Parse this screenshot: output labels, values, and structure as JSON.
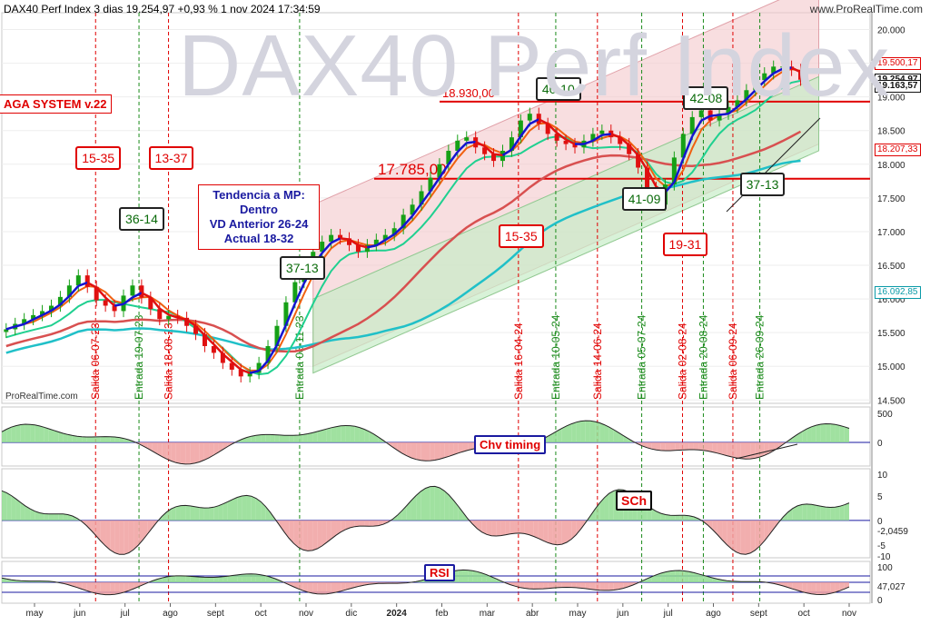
{
  "header": {
    "instrument": "DAX40 Perf Index 3 dias 19.254,97 +0,93 % 1 nov 2024 17:34:59",
    "brand": "www.ProRealTime.com",
    "watermark": "DAX40 Perf Index",
    "source": "ProRealTime.com"
  },
  "system_label": "AGA SYSTEM v.22",
  "trend_box": {
    "line1": "Tendencia a MP: Dentro",
    "line2": "VD Anterior 26-24",
    "line3": "Actual 18-32"
  },
  "indicator_labels": {
    "chv": "Chv timing",
    "sch": "SCh",
    "rsi": "RSI"
  },
  "colors": {
    "price_up": "#16a016",
    "price_down": "#e01010",
    "ma_fast_blue": "#1414d0",
    "ma_fast_red": "#e01010",
    "ma_mid_orange": "#f06010",
    "ma_green": "#20d090",
    "ma_slow": "#d85050",
    "ma_longest": "#20c0c8",
    "channel_red": "#f4c8cc",
    "channel_green": "#c8ecc8",
    "entry": "#1a8a1a",
    "exit": "#e00000"
  },
  "chart_data": {
    "type": "candlestick",
    "title": "DAX40 Perf Index 3 dias",
    "y_axis": {
      "ticks": [
        "20.000",
        "19.500",
        "19.000",
        "18.500",
        "18.000",
        "17.500",
        "17.000",
        "16.500",
        "16.000",
        "15.500",
        "15.000",
        "14.500"
      ],
      "ylim": [
        14450,
        20250
      ]
    },
    "x_axis": {
      "ticks": [
        "may",
        "jun",
        "jul",
        "ago",
        "sept",
        "oct",
        "nov",
        "dic",
        "2024",
        "feb",
        "mar",
        "abr",
        "may",
        "jun",
        "jul",
        "ago",
        "sept",
        "oct",
        "nov"
      ]
    },
    "price_labels": [
      {
        "text": "19.500,17",
        "value": 19500,
        "style": "red"
      },
      {
        "text": "19.254,97",
        "value": 19255,
        "style": "dark"
      },
      {
        "text": "19.163,57",
        "value": 19164,
        "style": "dark"
      },
      {
        "text": "18.207,33",
        "value": 18207,
        "style": "red"
      },
      {
        "text": "16.092,85",
        "value": 16093,
        "style": "cyan"
      }
    ],
    "horizontal_lines": [
      {
        "text": "18.930,00",
        "value": 18930
      },
      {
        "text": "17.785,00",
        "value": 17785
      }
    ],
    "vertical_markers": [
      {
        "text": "Salida 06-07-23",
        "kind": "exit",
        "t": 0.108
      },
      {
        "text": "Entrada 19-07-23",
        "kind": "entry",
        "t": 0.158
      },
      {
        "text": "Salida 18-08-23",
        "kind": "exit",
        "t": 0.192
      },
      {
        "text": "Entrada 08-11-23",
        "kind": "entry",
        "t": 0.343
      },
      {
        "text": "Salida 16-04-24",
        "kind": "exit",
        "t": 0.595
      },
      {
        "text": "Entrada 10-05-24",
        "kind": "entry",
        "t": 0.638
      },
      {
        "text": "Salida 14-06-24",
        "kind": "exit",
        "t": 0.686
      },
      {
        "text": "Entrada 05-07-24",
        "kind": "entry",
        "t": 0.737
      },
      {
        "text": "Salida 02-08-24",
        "kind": "exit",
        "t": 0.784
      },
      {
        "text": "Entrada 20-08-24",
        "kind": "entry",
        "t": 0.808
      },
      {
        "text": "Salida 06-09-24",
        "kind": "exit",
        "t": 0.842
      },
      {
        "text": "Entrada 26-09-24",
        "kind": "entry",
        "t": 0.873
      }
    ],
    "signal_boxes": [
      {
        "text": "15-35",
        "kind": "exit",
        "t": 0.108,
        "value": 18100
      },
      {
        "text": "13-37",
        "kind": "exit",
        "t": 0.192,
        "value": 18100
      },
      {
        "text": "36-14",
        "kind": "entry",
        "t": 0.158,
        "value": 17200
      },
      {
        "text": "37-13",
        "kind": "entry",
        "t": 0.343,
        "value": 16480
      },
      {
        "text": "15-35",
        "kind": "exit",
        "t": 0.595,
        "value": 16950
      },
      {
        "text": "40-10",
        "kind": "entry",
        "t": 0.638,
        "value": 19130
      },
      {
        "text": "41-09",
        "kind": "entry",
        "t": 0.737,
        "value": 17500
      },
      {
        "text": "19-31",
        "kind": "exit",
        "t": 0.784,
        "value": 16830
      },
      {
        "text": "42-08",
        "kind": "entry",
        "t": 0.808,
        "value": 19000
      },
      {
        "text": "37-13",
        "kind": "entry",
        "t": 0.873,
        "value": 17720
      }
    ],
    "close_series": [
      15550,
      15630,
      15700,
      15760,
      15820,
      15900,
      16030,
      16200,
      16350,
      16180,
      15980,
      15900,
      15820,
      16050,
      16200,
      16020,
      15850,
      15700,
      15750,
      15720,
      15600,
      15480,
      15300,
      15200,
      15050,
      14950,
      14850,
      14900,
      15050,
      15300,
      15600,
      15950,
      16250,
      16500,
      16700,
      16850,
      16950,
      16900,
      16800,
      16700,
      16800,
      16880,
      16950,
      17050,
      17250,
      17400,
      17600,
      17800,
      18000,
      18200,
      18350,
      18400,
      18250,
      18150,
      18050,
      18200,
      18400,
      18650,
      18750,
      18600,
      18450,
      18350,
      18300,
      18250,
      18350,
      18450,
      18500,
      18400,
      18300,
      18150,
      17950,
      17650,
      17400,
      17700,
      18100,
      18450,
      18700,
      18800,
      18650,
      18750,
      18850,
      18950,
      19100,
      19250,
      19350,
      19450,
      19450,
      19400,
      19255
    ],
    "indicators": {
      "chv": {
        "ticks": [
          "500",
          "0"
        ]
      },
      "sch": {
        "ticks": [
          "10",
          "5",
          "0",
          "-5",
          "-10"
        ],
        "last_label": "-2,0459"
      },
      "rsi": {
        "ticks": [
          "100",
          "0"
        ],
        "last_label": "47,027"
      }
    }
  }
}
